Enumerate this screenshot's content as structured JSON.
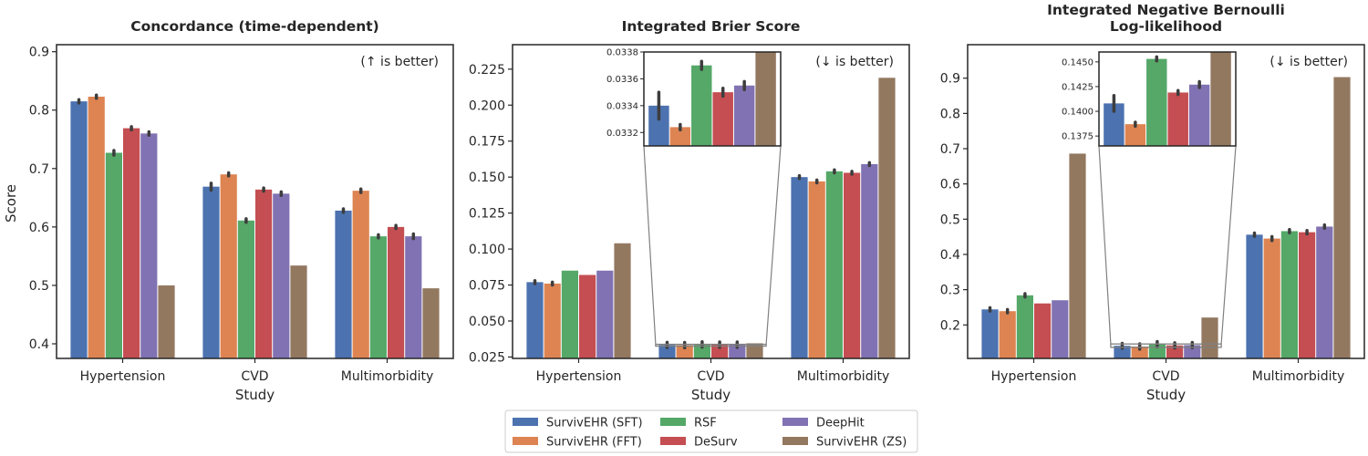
{
  "figure": {
    "ylabel": "Score",
    "xlabel": "Study",
    "categories": [
      "Hypertension",
      "CVD",
      "Multimorbidity"
    ]
  },
  "legend": {
    "items": [
      {
        "name": "SurvivEHR (SFT)",
        "color": "#4c72b0"
      },
      {
        "name": "SurvivEHR (FFT)",
        "color": "#dd8452"
      },
      {
        "name": "RSF",
        "color": "#55a868"
      },
      {
        "name": "DeSurv",
        "color": "#c44e52"
      },
      {
        "name": "DeepHit",
        "color": "#8172b3"
      },
      {
        "name": "SurvivEHR (ZS)",
        "color": "#937860"
      }
    ]
  },
  "chart_data": [
    {
      "type": "bar",
      "title": "Concordance (time-dependent)",
      "annotation": "(↑ is better)",
      "xlabel": "Study",
      "ylabel": "Score",
      "ylim": [
        0.375,
        0.912
      ],
      "yticks": [
        0.4,
        0.5,
        0.6,
        0.7,
        0.8,
        0.9
      ],
      "tick_decimals": 1,
      "categories": [
        "Hypertension",
        "CVD",
        "Multimorbidity"
      ],
      "series": [
        {
          "name": "SurvivEHR (SFT)",
          "values": [
            0.815,
            0.669,
            0.628
          ],
          "err": [
            0.003,
            0.006,
            0.003
          ]
        },
        {
          "name": "SurvivEHR (FFT)",
          "values": [
            0.823,
            0.69,
            0.662
          ],
          "err": [
            0.002,
            0.002,
            0.003
          ]
        },
        {
          "name": "RSF",
          "values": [
            0.727,
            0.611,
            0.584
          ],
          "err": [
            0.004,
            0.003,
            0.002
          ]
        },
        {
          "name": "DeSurv",
          "values": [
            0.769,
            0.664,
            0.6
          ],
          "err": [
            0.002,
            0.002,
            0.002
          ]
        },
        {
          "name": "DeepHit",
          "values": [
            0.76,
            0.657,
            0.584
          ],
          "err": [
            0.003,
            0.003,
            0.004
          ]
        },
        {
          "name": "SurvivEHR (ZS)",
          "values": [
            0.5,
            0.534,
            0.495
          ],
          "err": [
            0,
            0,
            0
          ]
        }
      ]
    },
    {
      "type": "bar",
      "title": "Integrated Brier Score",
      "annotation": "(↓ is better)",
      "xlabel": "Study",
      "ylim": [
        0.024,
        0.242
      ],
      "yticks": [
        0.025,
        0.05,
        0.075,
        0.1,
        0.125,
        0.15,
        0.175,
        0.2,
        0.225
      ],
      "tick_decimals": 3,
      "categories": [
        "Hypertension",
        "CVD",
        "Multimorbidity"
      ],
      "series": [
        {
          "name": "SurvivEHR (SFT)",
          "values": [
            0.077,
            0.0334,
            0.15
          ],
          "err": [
            0.001,
            0.0001,
            0.001
          ]
        },
        {
          "name": "SurvivEHR (FFT)",
          "values": [
            0.076,
            0.03324,
            0.147
          ],
          "err": [
            0.001,
            2e-05,
            0.001
          ]
        },
        {
          "name": "RSF",
          "values": [
            0.085,
            0.0337,
            0.154
          ],
          "err": [
            0,
            3e-05,
            0.001
          ]
        },
        {
          "name": "DeSurv",
          "values": [
            0.082,
            0.0335,
            0.153
          ],
          "err": [
            0,
            3e-05,
            0.001
          ]
        },
        {
          "name": "DeepHit",
          "values": [
            0.085,
            0.03355,
            0.159
          ],
          "err": [
            0,
            3e-05,
            0.001
          ]
        },
        {
          "name": "SurvivEHR (ZS)",
          "values": [
            0.104,
            0.0345,
            0.219
          ],
          "err": [
            0,
            0,
            0
          ]
        }
      ],
      "inset": {
        "category_index": 1,
        "ylim": [
          0.0331,
          0.0338
        ],
        "yticks": [
          0.0332,
          0.0334,
          0.0336,
          0.0338
        ],
        "tick_decimals": 4
      }
    },
    {
      "type": "bar",
      "title": "Integrated Negative Bernoulli",
      "title_line2": "Log-likelihood",
      "annotation": "(↓ is better)",
      "xlabel": "Study",
      "ylim": [
        0.105,
        0.995
      ],
      "yticks": [
        0.2,
        0.3,
        0.4,
        0.5,
        0.6,
        0.7,
        0.8,
        0.9
      ],
      "tick_decimals": 1,
      "categories": [
        "Hypertension",
        "CVD",
        "Multimorbidity"
      ],
      "series": [
        {
          "name": "SurvivEHR (SFT)",
          "values": [
            0.244,
            0.1408,
            0.456
          ],
          "err": [
            0.003,
            0.0008,
            0.003
          ]
        },
        {
          "name": "SurvivEHR (FFT)",
          "values": [
            0.239,
            0.1387,
            0.445
          ],
          "err": [
            0.003,
            0.0002,
            0.002
          ]
        },
        {
          "name": "RSF",
          "values": [
            0.284,
            0.1453,
            0.466
          ],
          "err": [
            0.003,
            0.0002,
            0.003
          ]
        },
        {
          "name": "DeSurv",
          "values": [
            0.261,
            0.1419,
            0.463
          ],
          "err": [
            0,
            0.0002,
            0.003
          ]
        },
        {
          "name": "DeepHit",
          "values": [
            0.27,
            0.1427,
            0.479
          ],
          "err": [
            0,
            0.0003,
            0.003
          ]
        },
        {
          "name": "SurvivEHR (ZS)",
          "values": [
            0.686,
            0.221,
            0.903
          ],
          "err": [
            0,
            0,
            0
          ]
        }
      ],
      "inset": {
        "category_index": 1,
        "ylim": [
          0.1365,
          0.146
        ],
        "yticks": [
          0.1375,
          0.14,
          0.1425,
          0.145
        ],
        "tick_decimals": 4
      }
    }
  ]
}
